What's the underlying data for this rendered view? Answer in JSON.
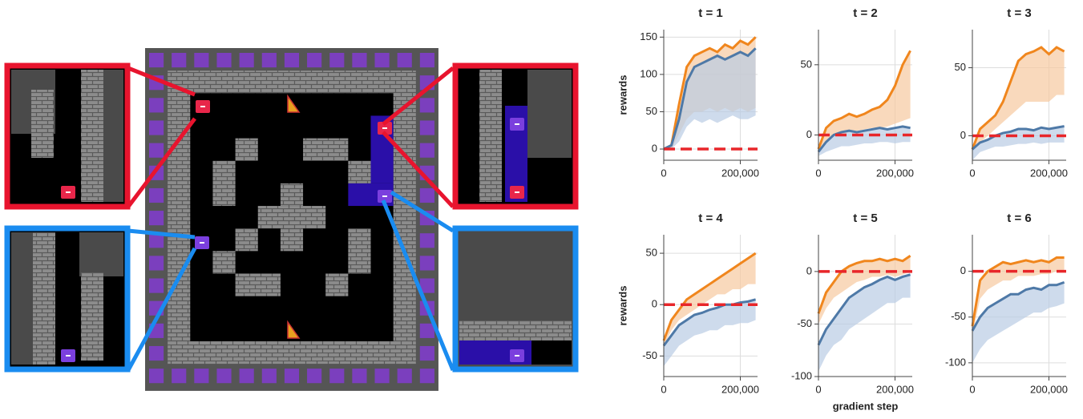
{
  "chart_data": [
    {
      "type": "line",
      "title": "t = 1",
      "ylabel": "rewards",
      "x": [
        0,
        20000,
        40000,
        60000,
        80000,
        100000,
        120000,
        140000,
        160000,
        180000,
        200000,
        220000,
        240000
      ],
      "xlim": [
        0,
        245000
      ],
      "xticks": [
        0,
        {
          "value": 200000,
          "label": "200,000"
        }
      ],
      "ylim": [
        -15,
        160
      ],
      "yticks": [
        0,
        50,
        100,
        150
      ],
      "grid": true,
      "baseline": 0,
      "baseline_color": "#e8262a",
      "series": [
        {
          "color": "#f0861d",
          "band_color": "#f6c9a0",
          "values": [
            0,
            5,
            60,
            110,
            125,
            130,
            135,
            130,
            140,
            135,
            145,
            140,
            150
          ],
          "band": [
            0,
            0,
            20,
            40,
            50,
            50,
            55,
            50,
            55,
            50,
            55,
            50,
            55
          ]
        },
        {
          "color": "#4e79a7",
          "band_color": "#b9cce4",
          "values": [
            0,
            5,
            40,
            90,
            110,
            115,
            120,
            125,
            120,
            125,
            130,
            125,
            135
          ],
          "band": [
            0,
            0,
            10,
            30,
            40,
            35,
            40,
            35,
            40,
            45,
            40,
            40,
            45
          ]
        }
      ]
    },
    {
      "type": "line",
      "title": "t = 2",
      "x": [
        0,
        20000,
        40000,
        60000,
        80000,
        100000,
        120000,
        140000,
        160000,
        180000,
        200000,
        220000,
        240000
      ],
      "xlim": [
        0,
        245000
      ],
      "xticks": [
        0,
        {
          "value": 200000,
          "label": "200,000"
        }
      ],
      "ylim": [
        -18,
        75
      ],
      "yticks": [
        0,
        50
      ],
      "grid": true,
      "baseline": 0,
      "baseline_color": "#e8262a",
      "series": [
        {
          "color": "#f0861d",
          "band_color": "#f6c9a0",
          "values": [
            -10,
            5,
            10,
            12,
            15,
            13,
            15,
            18,
            20,
            25,
            35,
            50,
            60
          ],
          "band": [
            -10,
            -5,
            0,
            0,
            2,
            3,
            4,
            5,
            5,
            6,
            8,
            10,
            12
          ]
        },
        {
          "color": "#4e79a7",
          "band_color": "#b9cce4",
          "values": [
            -12,
            -5,
            0,
            2,
            3,
            2,
            3,
            4,
            5,
            4,
            5,
            6,
            5
          ],
          "band": [
            -15,
            -12,
            -10,
            -8,
            -8,
            -7,
            -6,
            -6,
            -5,
            -5,
            -6,
            -5,
            -5
          ]
        }
      ]
    },
    {
      "type": "line",
      "title": "t = 3",
      "x": [
        0,
        20000,
        40000,
        60000,
        80000,
        100000,
        120000,
        140000,
        160000,
        180000,
        200000,
        220000,
        240000
      ],
      "xlim": [
        0,
        245000
      ],
      "xticks": [
        0,
        {
          "value": 200000,
          "label": "200,000"
        }
      ],
      "ylim": [
        -18,
        78
      ],
      "yticks": [
        0,
        50
      ],
      "grid": true,
      "baseline": 0,
      "baseline_color": "#e8262a",
      "series": [
        {
          "color": "#f0861d",
          "band_color": "#f6c9a0",
          "values": [
            -10,
            5,
            10,
            15,
            25,
            40,
            55,
            60,
            62,
            65,
            60,
            65,
            62
          ],
          "band": [
            -10,
            -5,
            0,
            5,
            10,
            15,
            20,
            25,
            25,
            25,
            25,
            30,
            30
          ]
        },
        {
          "color": "#4e79a7",
          "band_color": "#b9cce4",
          "values": [
            -10,
            -5,
            -3,
            0,
            2,
            3,
            5,
            5,
            4,
            6,
            5,
            6,
            7
          ],
          "band": [
            -18,
            -12,
            -10,
            -8,
            -8,
            -7,
            -6,
            -6,
            -5,
            -6,
            -5,
            -5,
            -5
          ]
        }
      ]
    },
    {
      "type": "line",
      "title": "t = 4",
      "ylabel": "rewards",
      "x": [
        0,
        20000,
        40000,
        60000,
        80000,
        100000,
        120000,
        140000,
        160000,
        180000,
        200000,
        220000,
        240000
      ],
      "xlim": [
        0,
        245000
      ],
      "xticks": [
        0,
        {
          "value": 200000,
          "label": "200,000"
        }
      ],
      "ylim": [
        -70,
        68
      ],
      "yticks": [
        -50,
        0,
        50
      ],
      "grid": true,
      "baseline": 0,
      "baseline_color": "#e8262a",
      "series": [
        {
          "color": "#f0861d",
          "band_color": "#f6c9a0",
          "values": [
            -35,
            -15,
            -5,
            5,
            10,
            15,
            20,
            25,
            30,
            35,
            40,
            45,
            50
          ],
          "band": [
            -40,
            -25,
            -15,
            -10,
            -5,
            0,
            5,
            10,
            10,
            15,
            15,
            20,
            20
          ]
        },
        {
          "color": "#4e79a7",
          "band_color": "#b9cce4",
          "values": [
            -40,
            -30,
            -20,
            -15,
            -10,
            -8,
            -5,
            -3,
            0,
            0,
            2,
            3,
            5
          ],
          "band": [
            -60,
            -50,
            -40,
            -35,
            -30,
            -28,
            -25,
            -25,
            -20,
            -20,
            -18,
            -18,
            -15
          ]
        }
      ]
    },
    {
      "type": "line",
      "title": "t = 5",
      "xlabel": "gradient step",
      "x": [
        0,
        20000,
        40000,
        60000,
        80000,
        100000,
        120000,
        140000,
        160000,
        180000,
        200000,
        220000,
        240000
      ],
      "xlim": [
        0,
        245000
      ],
      "xticks": [
        0,
        {
          "value": 200000,
          "label": "200,000"
        }
      ],
      "ylim": [
        -100,
        35
      ],
      "yticks": [
        -100,
        -50,
        0
      ],
      "grid": true,
      "baseline": 0,
      "baseline_color": "#e8262a",
      "series": [
        {
          "color": "#f0861d",
          "band_color": "#f6c9a0",
          "values": [
            -40,
            -20,
            -10,
            0,
            5,
            8,
            10,
            10,
            12,
            10,
            12,
            10,
            15
          ],
          "band": [
            -50,
            -35,
            -25,
            -20,
            -15,
            -10,
            -8,
            -5,
            -5,
            -3,
            -5,
            -3,
            0
          ]
        },
        {
          "color": "#4e79a7",
          "band_color": "#b9cce4",
          "values": [
            -70,
            -55,
            -45,
            -35,
            -25,
            -20,
            -15,
            -12,
            -8,
            -5,
            -8,
            -5,
            -3
          ],
          "band": [
            -95,
            -80,
            -70,
            -65,
            -55,
            -50,
            -45,
            -40,
            -35,
            -30,
            -30,
            -25,
            -25
          ]
        }
      ]
    },
    {
      "type": "line",
      "title": "t = 6",
      "x": [
        0,
        20000,
        40000,
        60000,
        80000,
        100000,
        120000,
        140000,
        160000,
        180000,
        200000,
        220000,
        240000
      ],
      "xlim": [
        0,
        245000
      ],
      "xticks": [
        0,
        {
          "value": 200000,
          "label": "200,000"
        }
      ],
      "ylim": [
        -115,
        40
      ],
      "yticks": [
        -100,
        -50,
        0
      ],
      "grid": true,
      "baseline": 0,
      "baseline_color": "#e8262a",
      "series": [
        {
          "color": "#f0861d",
          "band_color": "#f6c9a0",
          "values": [
            -60,
            -10,
            0,
            5,
            10,
            8,
            10,
            12,
            10,
            12,
            10,
            15,
            15
          ],
          "band": [
            -70,
            -30,
            -20,
            -15,
            -10,
            -10,
            -5,
            -5,
            -5,
            -3,
            -3,
            0,
            0
          ]
        },
        {
          "color": "#4e79a7",
          "band_color": "#b9cce4",
          "values": [
            -65,
            -50,
            -40,
            -35,
            -30,
            -25,
            -25,
            -20,
            -18,
            -20,
            -15,
            -15,
            -12
          ],
          "band": [
            -100,
            -85,
            -75,
            -70,
            -65,
            -60,
            -55,
            -50,
            -45,
            -45,
            -40,
            -38,
            -35
          ]
        }
      ]
    }
  ]
}
